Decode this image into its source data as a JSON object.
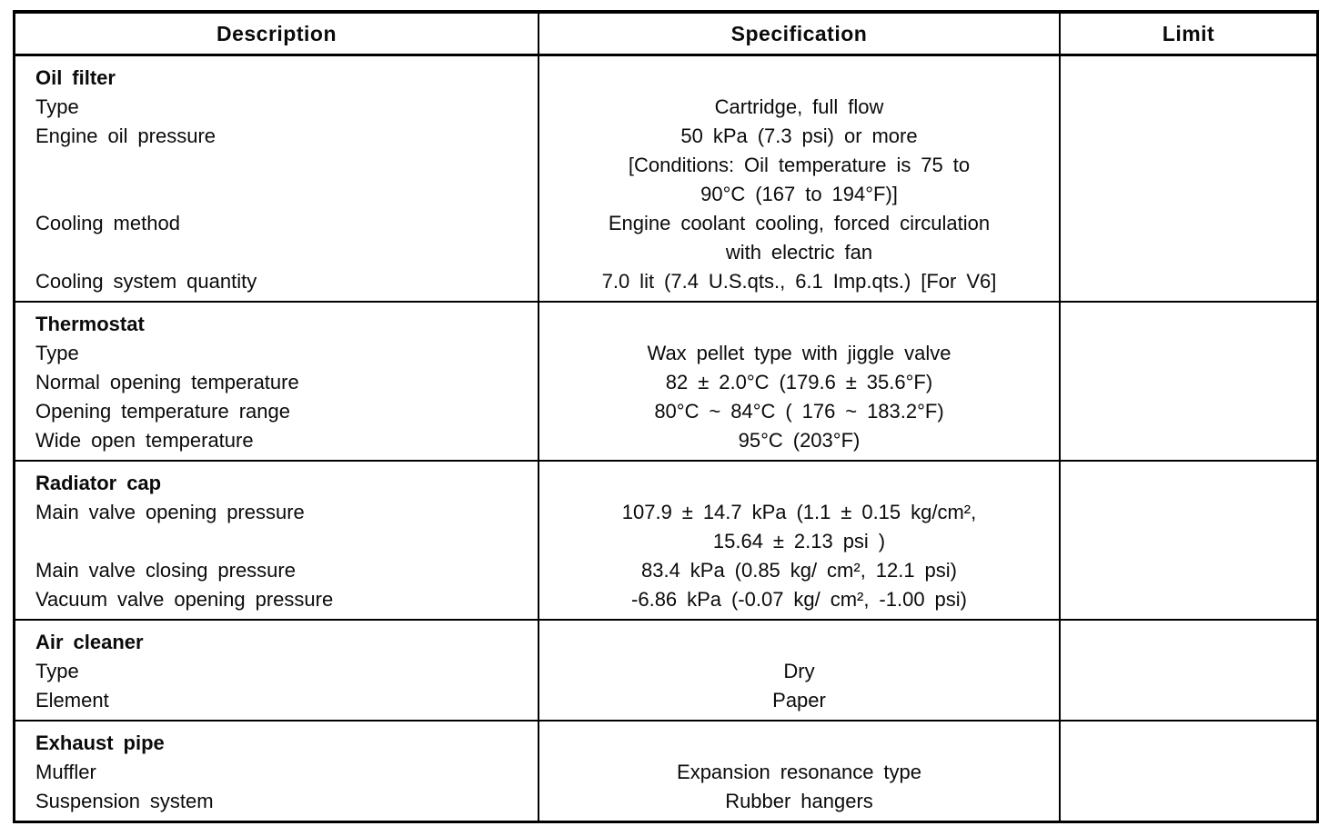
{
  "colors": {
    "paper": "#ffffff",
    "ink": "#000000"
  },
  "table": {
    "headers": [
      "Description",
      "Specification",
      "Limit"
    ],
    "groups": [
      {
        "section": "Oil filter",
        "limit": "",
        "rows": [
          {
            "bold": true,
            "desc": "Oil filter",
            "spec": ""
          },
          {
            "bold": false,
            "desc": "Type",
            "spec": "Cartridge, full flow"
          },
          {
            "bold": false,
            "desc": "Engine oil pressure",
            "spec": "50 kPa (7.3 psi) or more"
          },
          {
            "bold": false,
            "desc": "",
            "spec": "[Conditions: Oil temperature is 75 to"
          },
          {
            "bold": false,
            "desc": "",
            "spec": "90°C (167 to 194°F)]"
          },
          {
            "bold": false,
            "desc": "Cooling method",
            "spec": "Engine coolant cooling, forced circulation"
          },
          {
            "bold": false,
            "desc": "",
            "spec": "with electric fan"
          },
          {
            "bold": false,
            "desc": "Cooling system quantity",
            "spec": "7.0 lit (7.4 U.S.qts., 6.1 Imp.qts.) [For V6]"
          }
        ]
      },
      {
        "section": "Thermostat",
        "limit": "",
        "rows": [
          {
            "bold": true,
            "desc": "Thermostat",
            "spec": ""
          },
          {
            "bold": false,
            "desc": "Type",
            "spec": "Wax pellet type with jiggle valve"
          },
          {
            "bold": false,
            "desc": "Normal opening temperature",
            "spec": "82 ± 2.0°C (179.6 ± 35.6°F)"
          },
          {
            "bold": false,
            "desc": "Opening temperature range",
            "spec": "80°C ~ 84°C ( 176 ~ 183.2°F)"
          },
          {
            "bold": false,
            "desc": "Wide open temperature",
            "spec": "95°C (203°F)"
          }
        ]
      },
      {
        "section": "Radiator cap",
        "limit": "",
        "rows": [
          {
            "bold": true,
            "desc": "Radiator cap",
            "spec": ""
          },
          {
            "bold": false,
            "desc": "Main valve opening pressure",
            "spec": "107.9 ± 14.7 kPa (1.1 ± 0.15 kg/cm²,"
          },
          {
            "bold": false,
            "desc": "",
            "spec": "15.64 ± 2.13 psi )"
          },
          {
            "bold": false,
            "desc": "Main valve closing pressure",
            "spec": "83.4 kPa (0.85 kg/ cm², 12.1 psi)"
          },
          {
            "bold": false,
            "desc": "Vacuum valve opening pressure",
            "spec": "-6.86 kPa (-0.07 kg/ cm², -1.00 psi)"
          }
        ]
      },
      {
        "section": "Air cleaner",
        "limit": "",
        "rows": [
          {
            "bold": true,
            "desc": "Air cleaner",
            "spec": ""
          },
          {
            "bold": false,
            "desc": "Type",
            "spec": "Dry"
          },
          {
            "bold": false,
            "desc": "Element",
            "spec": "Paper"
          }
        ]
      },
      {
        "section": "Exhaust pipe",
        "limit": "",
        "rows": [
          {
            "bold": true,
            "desc": "Exhaust pipe",
            "spec": ""
          },
          {
            "bold": false,
            "desc": "Muffler",
            "spec": "Expansion resonance type"
          },
          {
            "bold": false,
            "desc": "Suspension system",
            "spec": "Rubber hangers"
          }
        ]
      }
    ]
  }
}
